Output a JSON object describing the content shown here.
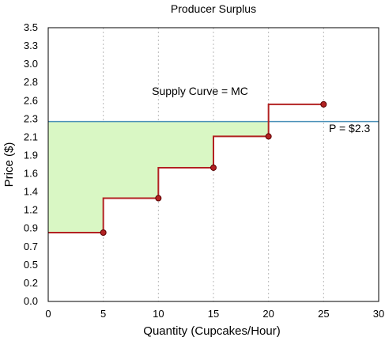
{
  "chart_data": {
    "type": "line",
    "title": "Producer Surplus",
    "xlabel": "Quantity (Cupcakes/Hour)",
    "ylabel": "Price ($)",
    "xlim": [
      0,
      30
    ],
    "ylim": [
      0,
      3.5
    ],
    "x_ticks": [
      "0",
      "5",
      "10",
      "15",
      "20",
      "25",
      "30"
    ],
    "y_ticks": [
      "0.0",
      "0.2",
      "0.5",
      "0.7",
      "0.9",
      "1.2",
      "1.4",
      "1.6",
      "1.9",
      "2.1",
      "2.3",
      "2.6",
      "2.8",
      "3.0",
      "3.3",
      "3.5"
    ],
    "grid": "vertical dashed",
    "series": [
      {
        "name": "Supply Curve = MC",
        "shape": "step",
        "color": "#b22222",
        "x": [
          5,
          10,
          15,
          20,
          25
        ],
        "y": [
          0.88,
          1.32,
          1.71,
          2.11,
          2.52
        ]
      }
    ],
    "price_line": {
      "value": 2.3,
      "label": "P = $2.3",
      "color": "#4a90b8"
    },
    "supply_label": "Supply Curve = MC",
    "surplus_area": {
      "fill": "#d9f7c4"
    }
  }
}
